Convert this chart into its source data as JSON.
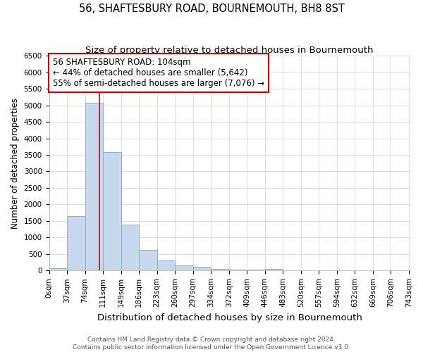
{
  "title": "56, SHAFTESBURY ROAD, BOURNEMOUTH, BH8 8ST",
  "subtitle": "Size of property relative to detached houses in Bournemouth",
  "xlabel": "Distribution of detached houses by size in Bournemouth",
  "ylabel": "Number of detached properties",
  "bin_edges": [
    0,
    37,
    74,
    111,
    148,
    185,
    222,
    259,
    296,
    333,
    370,
    407,
    444,
    481,
    518,
    555,
    592,
    629,
    666,
    703,
    740
  ],
  "bar_heights": [
    75,
    1650,
    5070,
    3580,
    1400,
    620,
    300,
    155,
    120,
    50,
    30,
    20,
    60,
    0,
    0,
    0,
    0,
    0,
    0,
    0
  ],
  "bar_color": "#c8d9ee",
  "bar_edgecolor": "#8ab0d0",
  "property_line_x": 104,
  "property_line_color": "#cc0000",
  "annotation_line1": "56 SHAFTESBURY ROAD: 104sqm",
  "annotation_line2": "← 44% of detached houses are smaller (5,642)",
  "annotation_line3": "55% of semi-detached houses are larger (7,076) →",
  "annotation_box_color": "#cc0000",
  "ylim": [
    0,
    6500
  ],
  "xlim": [
    0,
    743
  ],
  "yticks": [
    0,
    500,
    1000,
    1500,
    2000,
    2500,
    3000,
    3500,
    4000,
    4500,
    5000,
    5500,
    6000,
    6500
  ],
  "xtick_values": [
    0,
    37,
    74,
    111,
    148,
    185,
    222,
    259,
    296,
    333,
    370,
    407,
    444,
    481,
    518,
    555,
    592,
    629,
    666,
    703,
    740
  ],
  "xtick_labels": [
    "0sqm",
    "37sqm",
    "74sqm",
    "111sqm",
    "149sqm",
    "186sqm",
    "223sqm",
    "260sqm",
    "297sqm",
    "334sqm",
    "372sqm",
    "409sqm",
    "446sqm",
    "483sqm",
    "520sqm",
    "557sqm",
    "594sqm",
    "632sqm",
    "669sqm",
    "706sqm",
    "743sqm"
  ],
  "grid_color": "#d0d8e0",
  "background_color": "#ffffff",
  "footnote": "Contains HM Land Registry data © Crown copyright and database right 2024.\nContains public sector information licensed under the Open Government Licence v3.0.",
  "title_fontsize": 10.5,
  "subtitle_fontsize": 9.5,
  "xlabel_fontsize": 9.5,
  "ylabel_fontsize": 8.5,
  "tick_fontsize": 7.5,
  "footnote_fontsize": 6.5,
  "annotation_fontsize": 8.5
}
